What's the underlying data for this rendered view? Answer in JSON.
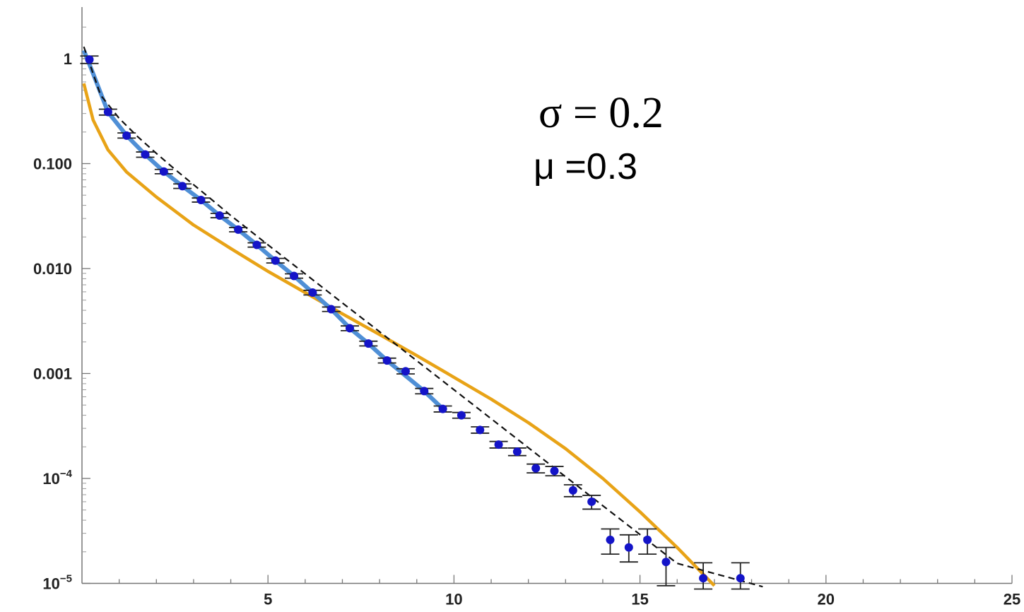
{
  "chart_data": {
    "type": "scatter",
    "yscale": "log",
    "xlim": [
      0,
      25
    ],
    "ylim": [
      1e-05,
      2.5
    ],
    "x_ticks": [
      {
        "value": 5,
        "label": "5"
      },
      {
        "value": 10,
        "label": "10"
      },
      {
        "value": 15,
        "label": "15"
      },
      {
        "value": 20,
        "label": "20"
      },
      {
        "value": 25,
        "label": "25"
      }
    ],
    "y_ticks": [
      {
        "value": 1,
        "label": "1",
        "sup": ""
      },
      {
        "value": 0.1,
        "label": "0.100",
        "sup": ""
      },
      {
        "value": 0.01,
        "label": "0.010",
        "sup": ""
      },
      {
        "value": 0.001,
        "label": "0.001",
        "sup": ""
      },
      {
        "value": 0.0001,
        "label": "10",
        "sup": "−4"
      },
      {
        "value": 1e-05,
        "label": "10",
        "sup": "−5"
      }
    ],
    "annotations": {
      "sigma": "σ = 0.2",
      "mu": "μ =0.3"
    },
    "colors": {
      "points": "#1414c8",
      "error_bars": "#222222",
      "blue_curve": "#4f8fd6",
      "orange_curve": "#e8a317",
      "dashed_line": "#111111"
    },
    "points": [
      {
        "x": 0.2,
        "y": 0.98,
        "lo": 0.9,
        "hi": 1.06
      },
      {
        "x": 0.7,
        "y": 0.31,
        "lo": 0.29,
        "hi": 0.33
      },
      {
        "x": 1.2,
        "y": 0.185,
        "lo": 0.175,
        "hi": 0.196
      },
      {
        "x": 1.7,
        "y": 0.122,
        "lo": 0.115,
        "hi": 0.129
      },
      {
        "x": 2.2,
        "y": 0.084,
        "lo": 0.08,
        "hi": 0.088
      },
      {
        "x": 2.7,
        "y": 0.061,
        "lo": 0.058,
        "hi": 0.064
      },
      {
        "x": 3.2,
        "y": 0.045,
        "lo": 0.043,
        "hi": 0.047
      },
      {
        "x": 3.7,
        "y": 0.032,
        "lo": 0.0305,
        "hi": 0.0335
      },
      {
        "x": 4.2,
        "y": 0.0235,
        "lo": 0.0224,
        "hi": 0.0246
      },
      {
        "x": 4.7,
        "y": 0.0168,
        "lo": 0.016,
        "hi": 0.0176
      },
      {
        "x": 5.2,
        "y": 0.0119,
        "lo": 0.0113,
        "hi": 0.0125
      },
      {
        "x": 5.7,
        "y": 0.0085,
        "lo": 0.0081,
        "hi": 0.0089
      },
      {
        "x": 6.2,
        "y": 0.0059,
        "lo": 0.0056,
        "hi": 0.0062
      },
      {
        "x": 6.7,
        "y": 0.0041,
        "lo": 0.0039,
        "hi": 0.0043
      },
      {
        "x": 7.2,
        "y": 0.0027,
        "lo": 0.00256,
        "hi": 0.00284
      },
      {
        "x": 7.7,
        "y": 0.00193,
        "lo": 0.00183,
        "hi": 0.00203
      },
      {
        "x": 8.2,
        "y": 0.00133,
        "lo": 0.00126,
        "hi": 0.0014
      },
      {
        "x": 8.7,
        "y": 0.00105,
        "lo": 0.00099,
        "hi": 0.00111
      },
      {
        "x": 9.2,
        "y": 0.00068,
        "lo": 0.00064,
        "hi": 0.00072
      },
      {
        "x": 9.7,
        "y": 0.00046,
        "lo": 0.00043,
        "hi": 0.00049
      },
      {
        "x": 10.2,
        "y": 0.0004,
        "lo": 0.000375,
        "hi": 0.000425
      },
      {
        "x": 10.7,
        "y": 0.00029,
        "lo": 0.00027,
        "hi": 0.00031
      },
      {
        "x": 11.2,
        "y": 0.00021,
        "lo": 0.000195,
        "hi": 0.000225
      },
      {
        "x": 11.7,
        "y": 0.00018,
        "lo": 0.000165,
        "hi": 0.000195
      },
      {
        "x": 12.2,
        "y": 0.000125,
        "lo": 0.000113,
        "hi": 0.000137
      },
      {
        "x": 12.7,
        "y": 0.000118,
        "lo": 0.000106,
        "hi": 0.00013
      },
      {
        "x": 13.2,
        "y": 7.7e-05,
        "lo": 6.7e-05,
        "hi": 8.7e-05
      },
      {
        "x": 13.7,
        "y": 6e-05,
        "lo": 5.1e-05,
        "hi": 6.9e-05
      },
      {
        "x": 14.2,
        "y": 2.6e-05,
        "lo": 1.9e-05,
        "hi": 3.3e-05
      },
      {
        "x": 14.7,
        "y": 2.2e-05,
        "lo": 1.6e-05,
        "hi": 2.9e-05
      },
      {
        "x": 15.2,
        "y": 2.6e-05,
        "lo": 1.9e-05,
        "hi": 3.3e-05
      },
      {
        "x": 15.7,
        "y": 1.6e-05,
        "lo": 9.5e-06,
        "hi": 2.2e-05
      },
      {
        "x": 16.7,
        "y": 1.12e-05,
        "lo": 7.2e-06,
        "hi": 1.57e-05
      },
      {
        "x": 17.7,
        "y": 1.12e-05,
        "lo": 7.2e-06,
        "hi": 1.57e-05
      }
    ],
    "blue_curve": {
      "x": [
        0.05,
        0.3,
        0.7,
        1.2,
        1.7,
        2.2,
        2.7,
        3.2,
        3.7,
        4.2,
        4.7,
        5.2,
        5.7,
        6.2,
        6.7,
        7.2,
        7.7,
        8.2,
        8.7,
        9.2,
        9.7
      ],
      "y": [
        1.2,
        0.72,
        0.31,
        0.185,
        0.122,
        0.084,
        0.061,
        0.045,
        0.032,
        0.0235,
        0.0168,
        0.0119,
        0.0085,
        0.0059,
        0.0041,
        0.0027,
        0.00193,
        0.00133,
        0.00095,
        0.00068,
        0.00046
      ]
    },
    "orange_curve": {
      "x": [
        0.05,
        0.3,
        0.7,
        1.2,
        2,
        3,
        4,
        5,
        6,
        7,
        8,
        9,
        10,
        11,
        12,
        13,
        14,
        15,
        16,
        17
      ],
      "y": [
        0.58,
        0.26,
        0.135,
        0.083,
        0.048,
        0.026,
        0.0155,
        0.0094,
        0.0059,
        0.0037,
        0.00235,
        0.00148,
        0.00092,
        0.00057,
        0.00034,
        0.000192,
        0.0001,
        4.8e-05,
        2.2e-05,
        9.5e-06
      ]
    },
    "dashed_line": {
      "x": [
        0.05,
        0.5,
        1,
        1.5,
        2,
        2.5,
        3,
        3.5,
        4,
        4.5,
        5,
        6,
        7,
        8,
        10,
        12,
        14,
        16,
        18.3
      ],
      "y": [
        1.3,
        0.45,
        0.27,
        0.18,
        0.125,
        0.088,
        0.063,
        0.045,
        0.032,
        0.0232,
        0.0168,
        0.0089,
        0.0047,
        0.0025,
        0.0007,
        0.000196,
        5.5e-05,
        1.55e-05,
        9.3e-06
      ]
    }
  }
}
